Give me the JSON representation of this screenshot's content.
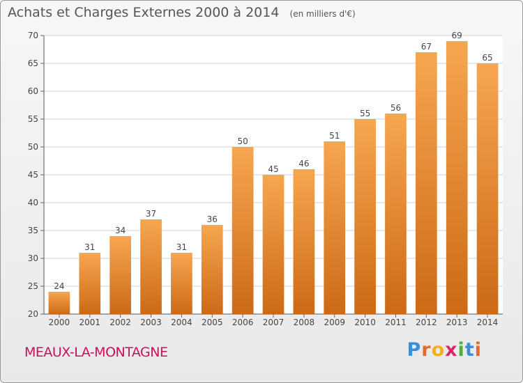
{
  "header": {
    "title": "Achats et Charges Externes 2000 à 2014",
    "unit": "(en milliers d'€)"
  },
  "footer": {
    "place": "MEAUX-LA-MONTAGNE",
    "logo": [
      "P",
      "r",
      "o",
      "x",
      "i",
      "t",
      "i"
    ]
  },
  "colors": {
    "bar_light": "#f7a650",
    "bar_dark": "#cc6a16",
    "place_text": "#c8105c",
    "grid": "#d2d2d2"
  },
  "chart_data": {
    "type": "bar",
    "title": "Achats et Charges Externes 2000 à 2014",
    "subtitle": "(en milliers d'€)",
    "categories": [
      "2000",
      "2001",
      "2002",
      "2003",
      "2004",
      "2005",
      "2006",
      "2007",
      "2008",
      "2009",
      "2010",
      "2011",
      "2012",
      "2013",
      "2014"
    ],
    "values": [
      24,
      31,
      34,
      37,
      31,
      36,
      50,
      45,
      46,
      51,
      55,
      56,
      67,
      69,
      65
    ],
    "ylim": [
      20,
      70
    ],
    "yticks": [
      20,
      25,
      30,
      35,
      40,
      45,
      50,
      55,
      60,
      65,
      70
    ],
    "grid": true,
    "xlabel": "",
    "ylabel": ""
  }
}
